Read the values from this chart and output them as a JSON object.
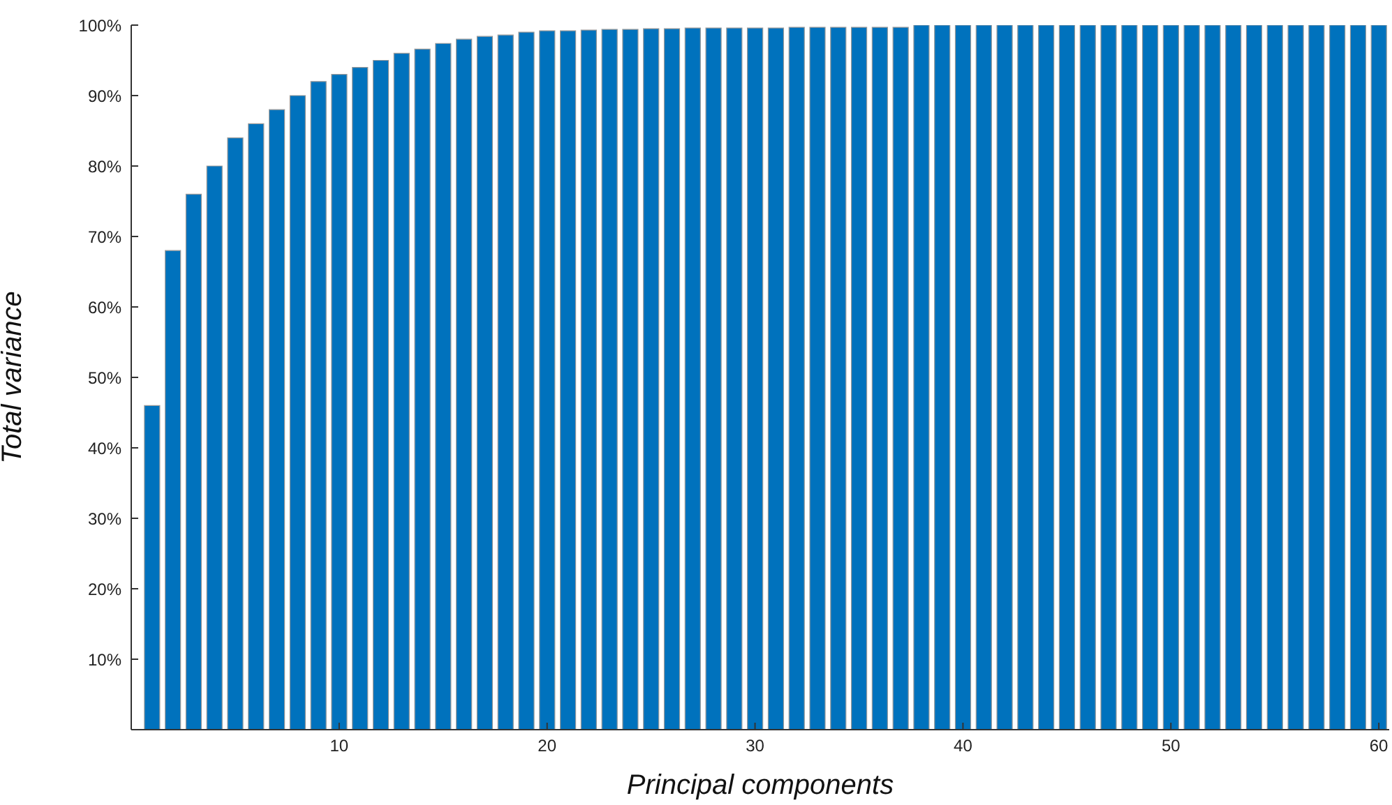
{
  "chart_data": {
    "type": "bar",
    "xlabel": "Principal components",
    "ylabel": "Total variance",
    "color": "#0072bd",
    "x": [
      1,
      2,
      3,
      4,
      5,
      6,
      7,
      8,
      9,
      10,
      11,
      12,
      13,
      14,
      15,
      16,
      17,
      18,
      19,
      20,
      21,
      22,
      23,
      24,
      25,
      26,
      27,
      28,
      29,
      30,
      31,
      32,
      33,
      34,
      35,
      36,
      37,
      38,
      39,
      40,
      41,
      42,
      43,
      44,
      45,
      46,
      47,
      48,
      49,
      50,
      51,
      52,
      53,
      54,
      55,
      56,
      57,
      58,
      59,
      60
    ],
    "values": [
      46,
      68,
      76,
      80,
      84,
      86,
      88,
      90,
      92,
      93,
      94,
      95,
      96,
      96.6,
      97.4,
      98,
      98.4,
      98.6,
      99,
      99.2,
      99.2,
      99.3,
      99.4,
      99.4,
      99.5,
      99.5,
      99.6,
      99.6,
      99.6,
      99.6,
      99.6,
      99.7,
      99.7,
      99.7,
      99.7,
      99.7,
      99.7,
      100,
      100,
      100,
      100,
      100,
      100,
      100,
      100,
      100,
      100,
      100,
      100,
      100,
      100,
      100,
      100,
      100,
      100,
      100,
      100,
      100,
      100,
      100
    ],
    "xlim": [
      0,
      60.5
    ],
    "xticks": [
      10,
      20,
      30,
      40,
      50,
      60
    ],
    "ylim": [
      0,
      100
    ],
    "yticks": [
      {
        "value": 10,
        "label": "10%"
      },
      {
        "value": 20,
        "label": "20%"
      },
      {
        "value": 30,
        "label": "30%"
      },
      {
        "value": 40,
        "label": "40%"
      },
      {
        "value": 50,
        "label": "50%"
      },
      {
        "value": 60,
        "label": "60%"
      },
      {
        "value": 70,
        "label": "70%"
      },
      {
        "value": 80,
        "label": "80%"
      },
      {
        "value": 90,
        "label": "90%"
      },
      {
        "value": 100,
        "label": "100%"
      }
    ],
    "grid": false,
    "legend": false
  }
}
